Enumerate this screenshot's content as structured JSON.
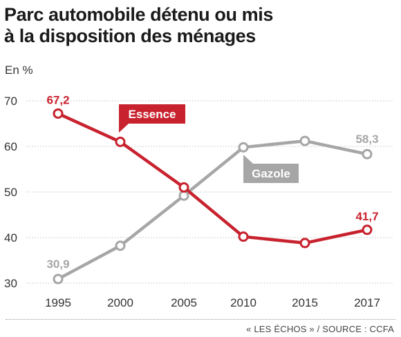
{
  "header": {
    "title_line1": "Parc automobile détenu ou mis",
    "title_line2": "à la disposition des ménages",
    "unit": "En %"
  },
  "footer": {
    "source": "« LES ÉCHOS » / SOURCE : CCFA"
  },
  "colors": {
    "essence": "#c8222e",
    "gazole": "#a6a6a6",
    "grid": "#bdbdbd"
  },
  "chart_data": {
    "type": "line",
    "title": "Parc automobile détenu ou mis à la disposition des ménages",
    "ylabel": "En %",
    "xlabel": "",
    "x": [
      1995,
      2000,
      2005,
      2010,
      2015,
      2017
    ],
    "x_tick_labels": [
      "1995",
      "2000",
      "2005",
      "2010",
      "2015",
      "2017"
    ],
    "y_ticks": [
      30,
      40,
      50,
      60,
      70
    ],
    "y_tick_labels": [
      "30",
      "40",
      "50",
      "60",
      "70"
    ],
    "ylim": [
      30,
      70
    ],
    "grid": "horizontal dotted",
    "series": [
      {
        "name": "Essence",
        "color": "#c8222e",
        "values": [
          67.2,
          61.0,
          51.0,
          40.2,
          38.8,
          41.7
        ],
        "labels": {
          "first": "67,2",
          "last": "41,7"
        }
      },
      {
        "name": "Gazole",
        "color": "#a6a6a6",
        "values": [
          30.9,
          38.2,
          49.2,
          59.8,
          61.2,
          58.3
        ],
        "labels": {
          "first": "30,9",
          "last": "58,3"
        }
      }
    ]
  }
}
